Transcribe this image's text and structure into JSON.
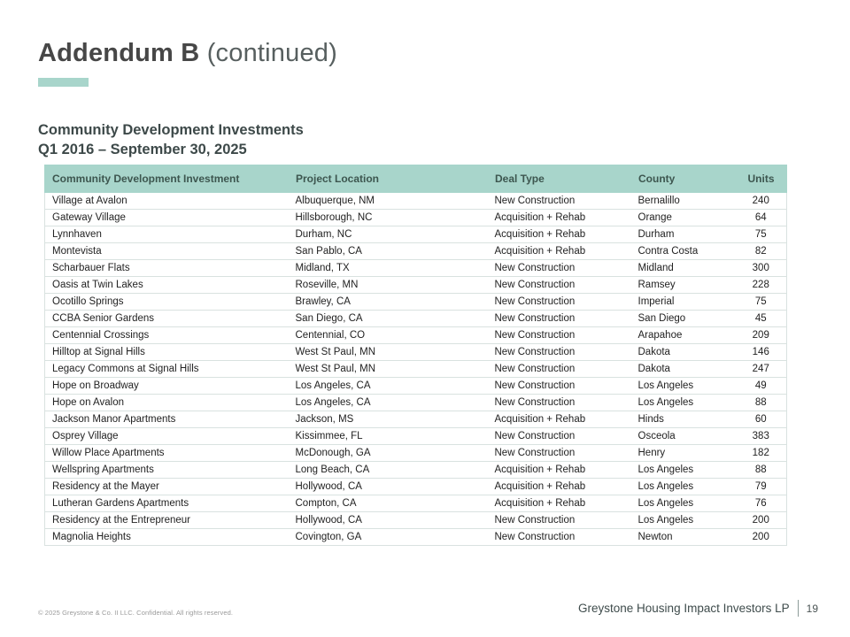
{
  "slide": {
    "title": {
      "main": "Addendum B",
      "suffix": " (continued)"
    },
    "subtitle_line1": "Community Development Investments",
    "subtitle_line2": "Q1 2016 – September 30, 2025",
    "footer": {
      "copyright": "© 2025 Greystone & Co. II LLC. Confidential. All rights reserved.",
      "company": "Greystone Housing Impact Investors LP",
      "page_number": "19"
    }
  },
  "colors": {
    "accent_teal": "#a8d5cb",
    "table_header_bg": "#a8d5cb",
    "table_header_text": "#3d564f",
    "title_text": "#474747",
    "subtitle_text": "#3d4949",
    "row_border": "#d9e2e0",
    "body_text": "#222222",
    "footer_copyright_text": "#9a9a9a"
  },
  "table": {
    "columns": [
      "Community Development Investment",
      "Project Location",
      "Deal Type",
      "County",
      "Units"
    ],
    "rows": [
      [
        "Village at Avalon",
        "Albuquerque, NM",
        "New Construction",
        "Bernalillo",
        "240"
      ],
      [
        "Gateway Village",
        "Hillsborough, NC",
        "Acquisition + Rehab",
        "Orange",
        "64"
      ],
      [
        "Lynnhaven",
        "Durham, NC",
        "Acquisition + Rehab",
        "Durham",
        "75"
      ],
      [
        "Montevista",
        "San Pablo, CA",
        "Acquisition + Rehab",
        "Contra Costa",
        "82"
      ],
      [
        "Scharbauer Flats",
        "Midland, TX",
        "New Construction",
        "Midland",
        "300"
      ],
      [
        "Oasis at Twin Lakes",
        "Roseville, MN",
        "New Construction",
        "Ramsey",
        "228"
      ],
      [
        "Ocotillo Springs",
        "Brawley, CA",
        "New Construction",
        "Imperial",
        "75"
      ],
      [
        "CCBA Senior Gardens",
        "San Diego, CA",
        "New Construction",
        "San Diego",
        "45"
      ],
      [
        "Centennial Crossings",
        "Centennial, CO",
        "New Construction",
        "Arapahoe",
        "209"
      ],
      [
        "Hilltop at Signal Hills",
        "West St Paul, MN",
        "New Construction",
        "Dakota",
        "146"
      ],
      [
        "Legacy Commons at Signal Hills",
        "West St Paul, MN",
        "New Construction",
        "Dakota",
        "247"
      ],
      [
        "Hope on Broadway",
        "Los Angeles, CA",
        "New Construction",
        "Los Angeles",
        "49"
      ],
      [
        "Hope on Avalon",
        "Los Angeles, CA",
        "New Construction",
        "Los Angeles",
        "88"
      ],
      [
        "Jackson Manor Apartments",
        "Jackson, MS",
        "Acquisition + Rehab",
        "Hinds",
        "60"
      ],
      [
        "Osprey Village",
        "Kissimmee, FL",
        "New Construction",
        "Osceola",
        "383"
      ],
      [
        "Willow Place Apartments",
        "McDonough, GA",
        "New Construction",
        "Henry",
        "182"
      ],
      [
        "Wellspring Apartments",
        "Long Beach, CA",
        "Acquisition + Rehab",
        "Los Angeles",
        "88"
      ],
      [
        "Residency at the Mayer",
        "Hollywood, CA",
        "Acquisition + Rehab",
        "Los Angeles",
        "79"
      ],
      [
        "Lutheran Gardens Apartments",
        "Compton, CA",
        "Acquisition + Rehab",
        "Los Angeles",
        "76"
      ],
      [
        "Residency at the Entrepreneur",
        "Hollywood, CA",
        "New Construction",
        "Los Angeles",
        "200"
      ],
      [
        "Magnolia Heights",
        "Covington, GA",
        "New Construction",
        "Newton",
        "200"
      ]
    ]
  }
}
